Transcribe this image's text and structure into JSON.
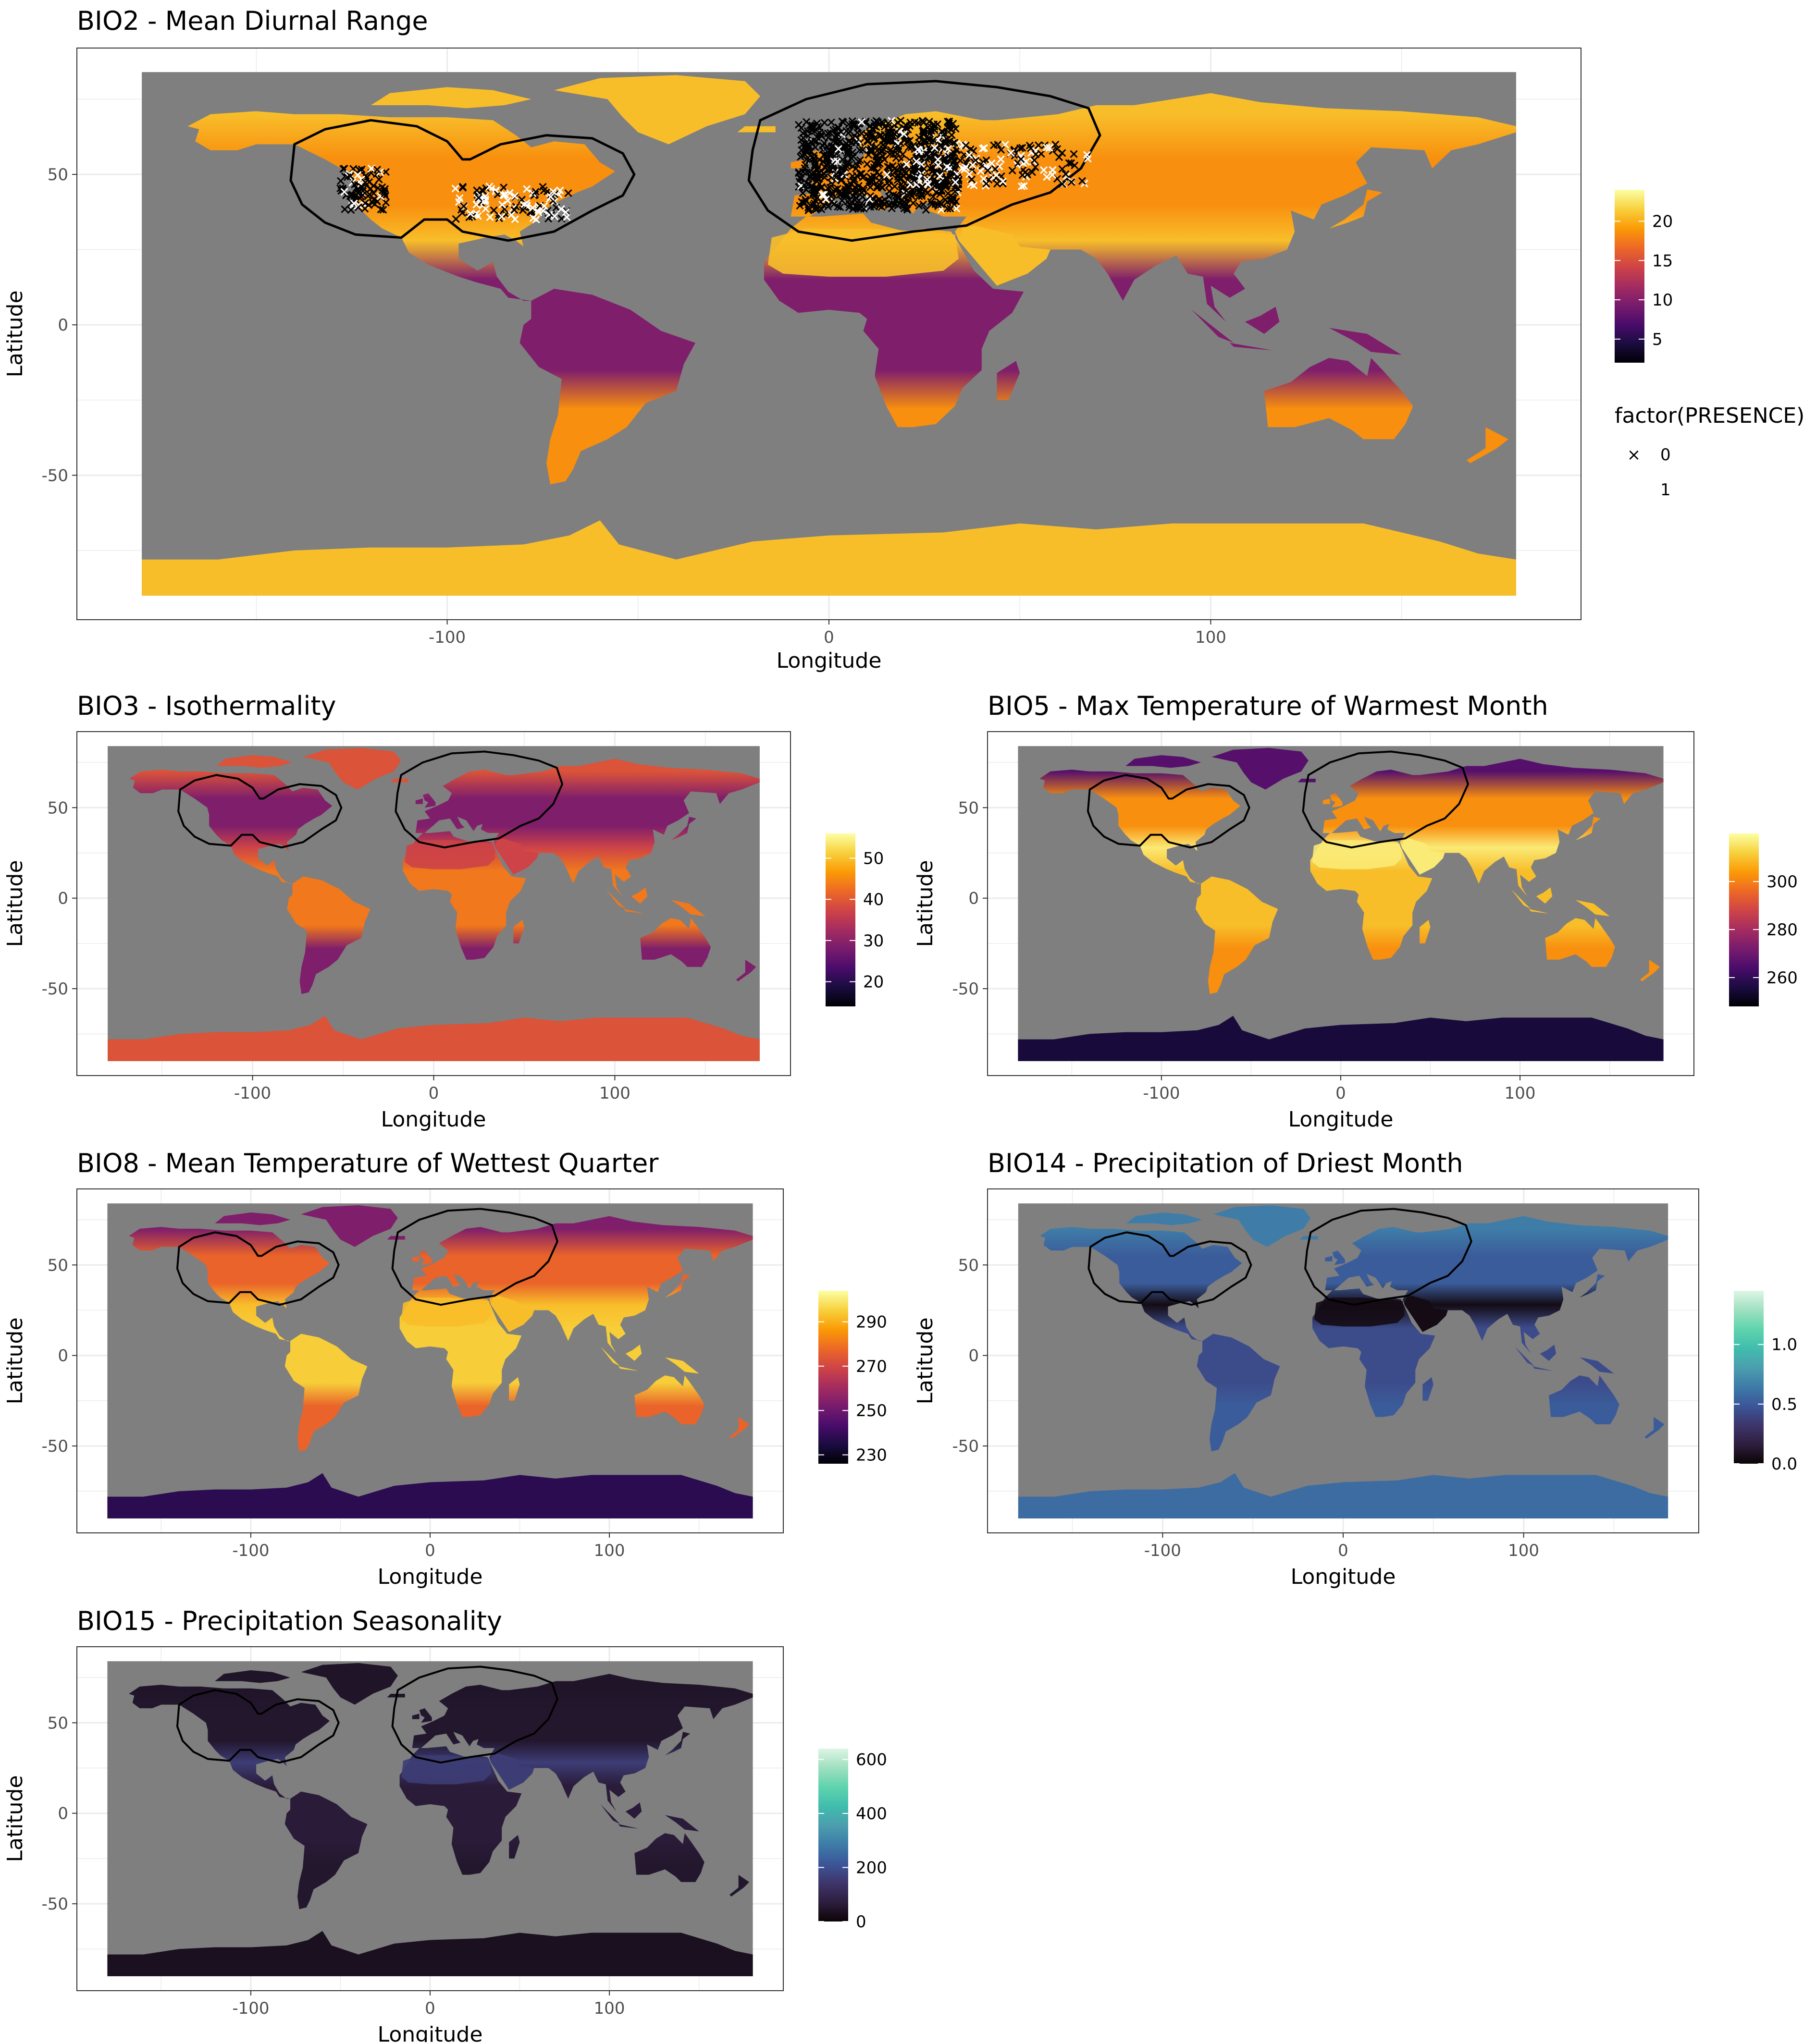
{
  "colors": {
    "ocean": "#7f7f7f",
    "panel_border": "#333333",
    "grid": "#ebebeb",
    "range_outline": "#000000",
    "inferno": [
      "#000004",
      "#1b0c41",
      "#4a0c6b",
      "#781c6d",
      "#a52c60",
      "#cf4446",
      "#ed6925",
      "#fb9b06",
      "#f7d13d",
      "#fcffa4"
    ],
    "mako": [
      "#0b0405",
      "#2d1e3e",
      "#3e356b",
      "#3b5698",
      "#3e7ba8",
      "#4b9eae",
      "#40bdad",
      "#5fd4ad",
      "#9fe0c0",
      "#def5e5"
    ]
  },
  "panels": [
    {
      "id": "bio2",
      "title": "BIO2 - Mean Diurnal Range",
      "xlabel": "Longitude",
      "ylabel": "Latitude",
      "xticks": [
        -100,
        0,
        100
      ],
      "yticks": [
        -50,
        0,
        50
      ],
      "xlim": [
        -197,
        197
      ],
      "ylim": [
        -98,
        92
      ],
      "palette": "inferno",
      "legend": {
        "title": "",
        "breaks": [
          5,
          10,
          15,
          20
        ],
        "range": [
          2,
          24
        ]
      },
      "land_bias": {
        "tropics": 0.35,
        "temperate": 0.75,
        "polar": 0.85,
        "desert": 0.85
      },
      "show_points": true
    },
    {
      "id": "bio3",
      "title": "BIO3 - Isothermality",
      "xlabel": "Longitude",
      "ylabel": "Latitude",
      "xticks": [
        -100,
        0,
        100
      ],
      "yticks": [
        -50,
        0,
        50
      ],
      "xlim": [
        -197,
        197
      ],
      "ylim": [
        -98,
        92
      ],
      "palette": "inferno",
      "legend": {
        "title": "",
        "breaks": [
          20,
          30,
          40,
          50
        ],
        "range": [
          14,
          56
        ]
      },
      "land_bias": {
        "tropics": 0.7,
        "temperate": 0.35,
        "polar": 0.6,
        "desert": 0.55
      },
      "show_points": false
    },
    {
      "id": "bio5",
      "title": "BIO5 - Max Temperature of Warmest Month",
      "xlabel": "Longitude",
      "ylabel": "Latitude",
      "xticks": [
        -100,
        0,
        100
      ],
      "yticks": [
        -50,
        0,
        50
      ],
      "xlim": [
        -197,
        197
      ],
      "ylim": [
        -98,
        92
      ],
      "palette": "inferno",
      "legend": {
        "title": "",
        "breaks": [
          260,
          280,
          300
        ],
        "range": [
          248,
          320
        ]
      },
      "land_bias": {
        "tropics": 0.85,
        "temperate": 0.75,
        "polar": 0.25,
        "desert": 0.95,
        "antarctica": 0.1
      },
      "show_points": false
    },
    {
      "id": "bio8",
      "title": "BIO8 - Mean Temperature of Wettest Quarter",
      "xlabel": "Longitude",
      "ylabel": "Latitude",
      "xticks": [
        -100,
        0,
        100
      ],
      "yticks": [
        -50,
        0,
        50
      ],
      "xlim": [
        -197,
        197
      ],
      "ylim": [
        -98,
        92
      ],
      "palette": "inferno",
      "legend": {
        "title": "",
        "breaks": [
          230,
          250,
          270,
          290
        ],
        "range": [
          226,
          304
        ]
      },
      "land_bias": {
        "tropics": 0.88,
        "temperate": 0.65,
        "polar": 0.35,
        "desert": 0.85,
        "antarctica": 0.15
      },
      "show_points": false
    },
    {
      "id": "bio14",
      "title": "BIO14 - Precipitation of Driest Month",
      "xlabel": "Longitude",
      "ylabel": "Latitude",
      "xticks": [
        -100,
        0,
        100
      ],
      "yticks": [
        -50,
        0,
        50
      ],
      "xlim": [
        -197,
        197
      ],
      "ylim": [
        -98,
        92
      ],
      "palette": "mako",
      "legend": {
        "title": "",
        "breaks": [
          0.0,
          0.5,
          1.0
        ],
        "break_labels": [
          "0.0",
          "0.5",
          "1.0"
        ],
        "range": [
          0,
          1.45
        ]
      },
      "land_bias": {
        "tropics": 0.3,
        "temperate": 0.35,
        "polar": 0.45,
        "desert": 0.03,
        "antarctica": 0.4
      },
      "show_points": false
    },
    {
      "id": "bio15",
      "title": "BIO15 - Precipitation Seasonality",
      "xlabel": "Longitude",
      "ylabel": "Latitude",
      "xticks": [
        -100,
        0,
        100
      ],
      "yticks": [
        -50,
        0,
        50
      ],
      "xlim": [
        -197,
        197
      ],
      "ylim": [
        -98,
        92
      ],
      "palette": "mako",
      "legend": {
        "title": "",
        "breaks": [
          0,
          200,
          400,
          600
        ],
        "range": [
          0,
          640
        ]
      },
      "land_bias": {
        "tropics": 0.1,
        "temperate": 0.08,
        "polar": 0.07,
        "desert": 0.25,
        "antarctica": 0.05
      },
      "show_points": false
    }
  ],
  "presence_legend": {
    "title": "factor(PRESENCE)",
    "entries": [
      {
        "label": "0",
        "symbol": "×",
        "color": "#000000"
      },
      {
        "label": "1",
        "symbol": "×",
        "color": "#ffffff"
      }
    ]
  }
}
